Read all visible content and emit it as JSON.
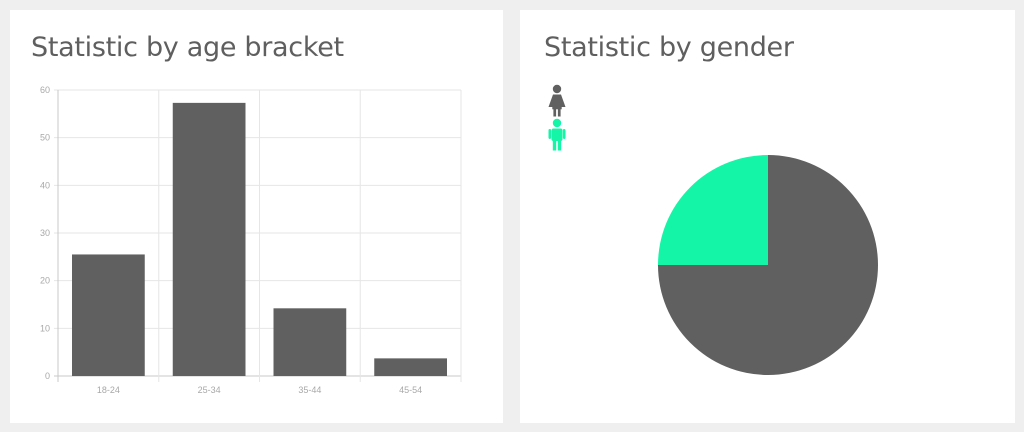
{
  "age_card": {
    "title": "Statistic by age bracket"
  },
  "gender_card": {
    "title": "Statistic by gender"
  },
  "colors": {
    "bar": "#606060",
    "grid": "#e6e6e6",
    "axis": "#c8c8c8",
    "tick_text": "#a8a8a8",
    "female": "#606060",
    "male": "#14f5a8"
  },
  "chart_data": [
    {
      "type": "bar",
      "title": "Statistic by age bracket",
      "categories": [
        "18-24",
        "25-34",
        "35-44",
        "45-54"
      ],
      "values": [
        25.5,
        57.3,
        14.2,
        3.7
      ],
      "ylim": [
        0,
        60
      ],
      "yticks": [
        "0",
        "10",
        "20",
        "30",
        "40",
        "50",
        "60"
      ],
      "xlabel": "",
      "ylabel": "",
      "grid": true
    },
    {
      "type": "pie",
      "title": "Statistic by gender",
      "labels": [
        "",
        ""
      ],
      "legend_icons": [
        "female-icon",
        "male-icon"
      ],
      "values": [
        75,
        25
      ],
      "legend": "top-left"
    }
  ]
}
